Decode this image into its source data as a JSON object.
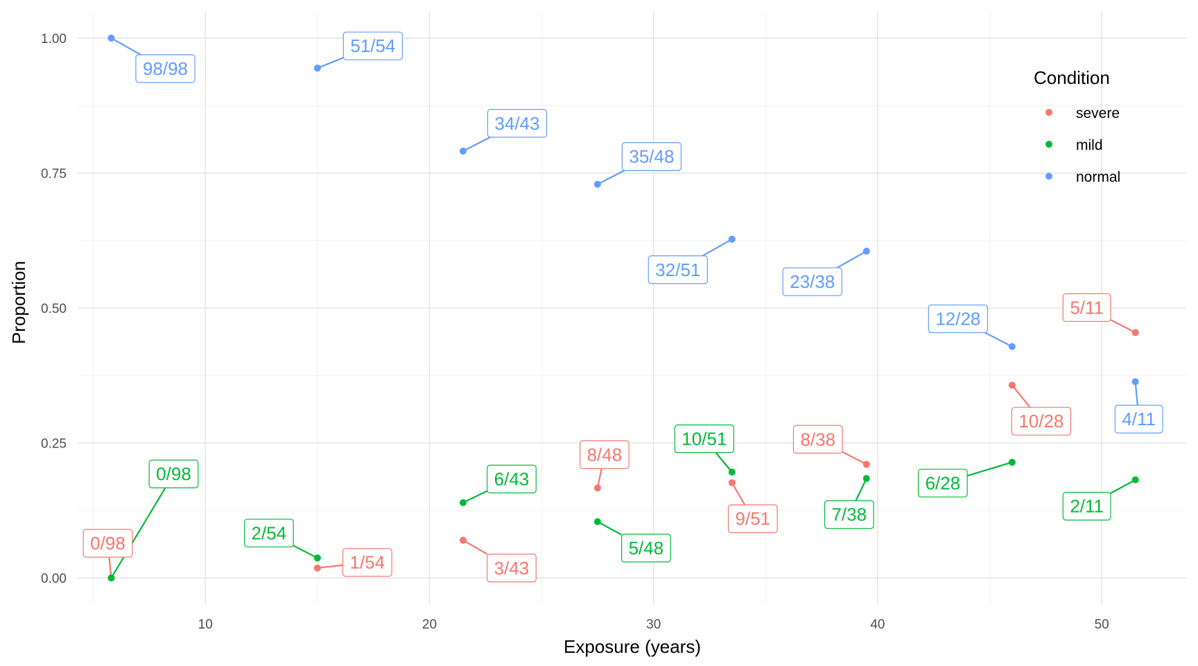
{
  "chart_data": {
    "type": "scatter",
    "xlabel": "Exposure (years)",
    "ylabel": "Proportion",
    "xlim": [
      4.3,
      53.8
    ],
    "ylim": [
      -0.05,
      1.05
    ],
    "x_ticks": [
      10,
      20,
      30,
      40,
      50
    ],
    "x_tick_labels": [
      "10",
      "20",
      "30",
      "40",
      "50"
    ],
    "y_ticks": [
      0,
      0.25,
      0.5,
      0.75,
      1
    ],
    "y_tick_labels": [
      "0.00",
      "0.25",
      "0.50",
      "0.75",
      "1.00"
    ],
    "grid": true,
    "legend": {
      "title": "Condition",
      "position": "top-right"
    },
    "series": [
      {
        "name": "severe",
        "color": "#F8766D",
        "points": [
          {
            "x": 5.8,
            "y": 0.0,
            "label": "0/98"
          },
          {
            "x": 15.0,
            "y": 0.0185,
            "label": "1/54"
          },
          {
            "x": 21.5,
            "y": 0.0698,
            "label": "3/43"
          },
          {
            "x": 27.5,
            "y": 0.1667,
            "label": "8/48"
          },
          {
            "x": 33.5,
            "y": 0.1765,
            "label": "9/51"
          },
          {
            "x": 39.5,
            "y": 0.2105,
            "label": "8/38"
          },
          {
            "x": 46.0,
            "y": 0.3571,
            "label": "10/28"
          },
          {
            "x": 51.5,
            "y": 0.4545,
            "label": "5/11"
          }
        ]
      },
      {
        "name": "mild",
        "color": "#00BA38",
        "points": [
          {
            "x": 5.8,
            "y": 0.0,
            "label": "0/98"
          },
          {
            "x": 15.0,
            "y": 0.037,
            "label": "2/54"
          },
          {
            "x": 21.5,
            "y": 0.1395,
            "label": "6/43"
          },
          {
            "x": 27.5,
            "y": 0.1042,
            "label": "5/48"
          },
          {
            "x": 33.5,
            "y": 0.1961,
            "label": "10/51"
          },
          {
            "x": 39.5,
            "y": 0.1842,
            "label": "7/38"
          },
          {
            "x": 46.0,
            "y": 0.2143,
            "label": "6/28"
          },
          {
            "x": 51.5,
            "y": 0.1818,
            "label": "2/11"
          }
        ]
      },
      {
        "name": "normal",
        "color": "#619CFF",
        "points": [
          {
            "x": 5.8,
            "y": 1.0,
            "label": "98/98"
          },
          {
            "x": 15.0,
            "y": 0.9444,
            "label": "51/54"
          },
          {
            "x": 21.5,
            "y": 0.7907,
            "label": "34/43"
          },
          {
            "x": 27.5,
            "y": 0.7292,
            "label": "35/48"
          },
          {
            "x": 33.5,
            "y": 0.6275,
            "label": "32/51"
          },
          {
            "x": 39.5,
            "y": 0.6053,
            "label": "23/38"
          },
          {
            "x": 46.0,
            "y": 0.4286,
            "label": "12/28"
          },
          {
            "x": 51.5,
            "y": 0.3636,
            "label": "4/11"
          }
        ]
      }
    ]
  }
}
